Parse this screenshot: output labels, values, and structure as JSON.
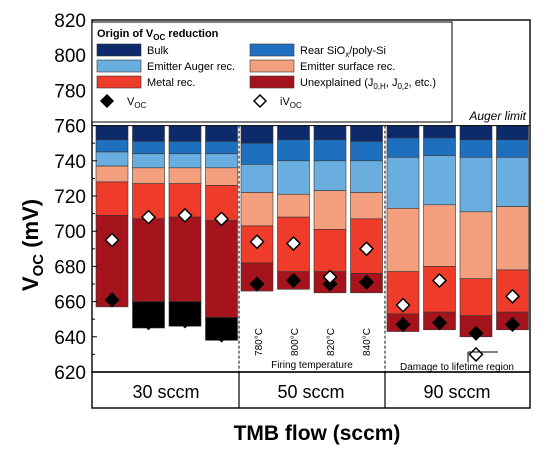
{
  "chart_data": {
    "type": "bar",
    "stacked": true,
    "ylabel_main": "V",
    "ylabel_sub": "OC",
    "ylabel_unit": " (mV)",
    "xlabel": "TMB flow (sccm)",
    "ylim": [
      620,
      820
    ],
    "yticks": [
      620,
      640,
      660,
      680,
      700,
      720,
      740,
      760,
      780,
      800,
      820
    ],
    "auger_limit": 760,
    "auger_label": "Auger limit",
    "groups": [
      "30 sccm",
      "50 sccm",
      "90 sccm"
    ],
    "firing_temperatures": [
      "780°C",
      "800°C",
      "820°C",
      "840°C"
    ],
    "firing_label": "Firing temperature",
    "damage_label": "Damage to lifetime region",
    "legend_title_main": "Origin of V",
    "legend_title_sub": "OC",
    "legend_title_rest": " reduction",
    "series": [
      {
        "name": "Bulk",
        "color": "#0d2b6b"
      },
      {
        "name": "Rear SiOx/poly-Si",
        "label_main": "Rear SiO",
        "label_sub": "x",
        "label_rest": "/poly-Si",
        "color": "#1f6fbf"
      },
      {
        "name": "Emitter Auger rec.",
        "color": "#6aaee0"
      },
      {
        "name": "Emitter surface rec.",
        "color": "#f4a07e"
      },
      {
        "name": "Metal rec.",
        "color": "#ee3b2a"
      },
      {
        "name": "Unexplained (J0,H, J0,2, etc.)",
        "color": "#a5141c"
      }
    ],
    "markers": [
      {
        "name": "VOC",
        "label_main": "V",
        "label_sub": "OC",
        "style": "filled-diamond"
      },
      {
        "name": "iVOC",
        "label_main": "iV",
        "label_sub": "OC",
        "style": "open-diamond"
      }
    ],
    "bars": [
      {
        "group": "30 sccm",
        "bounds": [
          760,
          752,
          745,
          737,
          728,
          709,
          657
        ],
        "voc": 661,
        "ivoc": 695
      },
      {
        "group": "30 sccm",
        "bounds": [
          760,
          751,
          744,
          736,
          727,
          707,
          660,
          645
        ],
        "voc": 648,
        "ivoc": 708
      },
      {
        "group": "30 sccm",
        "bounds": [
          760,
          751,
          744,
          736,
          727,
          708,
          660,
          646
        ],
        "voc": 649,
        "ivoc": 709
      },
      {
        "group": "30 sccm",
        "bounds": [
          760,
          751,
          744,
          736,
          726,
          706,
          651,
          638
        ],
        "voc": 641,
        "ivoc": 707
      },
      {
        "group": "50 sccm",
        "temp": "780°C",
        "bounds": [
          760,
          750,
          738,
          722,
          703,
          682,
          666
        ],
        "voc": 670,
        "ivoc": 694
      },
      {
        "group": "50 sccm",
        "temp": "800°C",
        "bounds": [
          760,
          752,
          740,
          721,
          708,
          677,
          667
        ],
        "voc": 672,
        "ivoc": 693
      },
      {
        "group": "50 sccm",
        "temp": "820°C",
        "bounds": [
          760,
          752,
          740,
          723,
          701,
          677,
          665
        ],
        "voc": 670,
        "ivoc": 674
      },
      {
        "group": "50 sccm",
        "temp": "840°C",
        "bounds": [
          760,
          751,
          740,
          722,
          707,
          676,
          665
        ],
        "voc": 671,
        "ivoc": 690
      },
      {
        "group": "90 sccm",
        "bounds": [
          760,
          753,
          742,
          713,
          677,
          653,
          643
        ],
        "voc": 647,
        "ivoc": 658
      },
      {
        "group": "90 sccm",
        "bounds": [
          760,
          753,
          743,
          715,
          680,
          654,
          644
        ],
        "voc": 648,
        "ivoc": 672
      },
      {
        "group": "90 sccm",
        "bounds": [
          760,
          752,
          742,
          711,
          673,
          652,
          640
        ],
        "voc": 642,
        "ivoc": 630
      },
      {
        "group": "90 sccm",
        "bounds": [
          760,
          752,
          742,
          714,
          678,
          654,
          644
        ],
        "voc": 647,
        "ivoc": 663
      }
    ],
    "grid": false,
    "legend_position": "top-left"
  }
}
